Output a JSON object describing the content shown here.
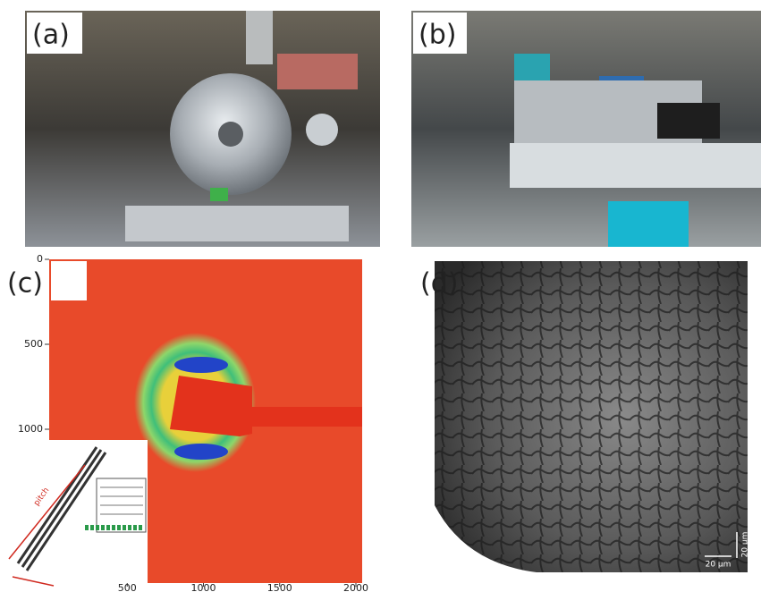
{
  "panels": [
    {
      "label": "(a)"
    },
    {
      "label": "(b)"
    },
    {
      "label": "(c)",
      "yticks": [
        0,
        500,
        1000
      ],
      "xticks": [
        500,
        1000,
        1500,
        2000
      ],
      "inset_label": "pitch"
    },
    {
      "label": "(d)",
      "scale_bar_x": "20 µm",
      "scale_bar_y": "20 µm"
    }
  ]
}
